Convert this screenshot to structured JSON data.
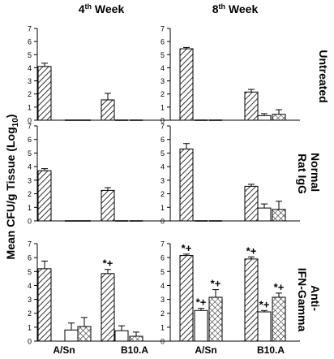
{
  "figure": {
    "ylabel": "Mean CFU/g Tissue (Log",
    "ylabel_sub": "10",
    "ylabel_end": ")",
    "columns": [
      {
        "main": "4",
        "sup": "th",
        "rest": " Week"
      },
      {
        "main": "8",
        "sup": "th",
        "rest": " Week"
      }
    ],
    "rows": [
      {
        "lines": [
          "Untreated"
        ]
      },
      {
        "lines": [
          "Normal",
          "Rat IgG"
        ]
      },
      {
        "lines": [
          "Anti-",
          "IFN-Gamma"
        ]
      }
    ],
    "x_groups": [
      "A/Sn",
      "B10.A"
    ]
  },
  "chart_data": [
    {
      "type": "bar",
      "week": "4th Week",
      "treatment": "Untreated",
      "categories": [
        "A/Sn",
        "B10.A"
      ],
      "ylim": [
        0,
        7
      ],
      "yticks": [
        "0",
        "1",
        "2",
        "3",
        "4",
        "5",
        "6",
        "7"
      ],
      "series": [
        {
          "values": [
            4.1,
            1.55
          ],
          "errors": [
            0.25,
            0.5
          ]
        },
        {
          "values": [
            0,
            0
          ],
          "errors": [
            0,
            0
          ]
        },
        {
          "values": [
            0,
            0
          ],
          "errors": [
            0,
            0
          ]
        }
      ],
      "annotations": [
        [
          [],
          [],
          []
        ],
        [
          [],
          [],
          []
        ]
      ]
    },
    {
      "type": "bar",
      "week": "8th Week",
      "treatment": "Untreated",
      "categories": [
        "A/Sn",
        "B10.A"
      ],
      "ylim": [
        0,
        7
      ],
      "yticks": [
        "0",
        "1",
        "2",
        "3",
        "4",
        "5",
        "6",
        "7"
      ],
      "series": [
        {
          "values": [
            5.45,
            2.15
          ],
          "errors": [
            0.1,
            0.2
          ]
        },
        {
          "values": [
            0,
            0.35
          ],
          "errors": [
            0,
            0.15
          ]
        },
        {
          "values": [
            0,
            0.45
          ],
          "errors": [
            0,
            0.35
          ]
        }
      ],
      "annotations": [
        [
          [],
          [],
          []
        ],
        [
          [],
          [],
          []
        ]
      ]
    },
    {
      "type": "bar",
      "week": "4th Week",
      "treatment": "Normal Rat IgG",
      "categories": [
        "A/Sn",
        "B10.A"
      ],
      "ylim": [
        0,
        7
      ],
      "yticks": [
        "0",
        "1",
        "2",
        "3",
        "4",
        "5",
        "6",
        "7"
      ],
      "series": [
        {
          "values": [
            3.7,
            2.25
          ],
          "errors": [
            0.15,
            0.2
          ]
        },
        {
          "values": [
            0,
            0
          ],
          "errors": [
            0,
            0
          ]
        },
        {
          "values": [
            0,
            0
          ],
          "errors": [
            0,
            0
          ]
        }
      ],
      "annotations": [
        [
          [],
          [],
          []
        ],
        [
          [],
          [],
          []
        ]
      ]
    },
    {
      "type": "bar",
      "week": "8th Week",
      "treatment": "Normal Rat IgG",
      "categories": [
        "A/Sn",
        "B10.A"
      ],
      "ylim": [
        0,
        7
      ],
      "yticks": [
        "0",
        "1",
        "2",
        "3",
        "4",
        "5",
        "6",
        "7"
      ],
      "series": [
        {
          "values": [
            5.3,
            2.55
          ],
          "errors": [
            0.4,
            0.15
          ]
        },
        {
          "values": [
            0,
            0.95
          ],
          "errors": [
            0,
            0.3
          ]
        },
        {
          "values": [
            0,
            0.85
          ],
          "errors": [
            0,
            0.6
          ]
        }
      ],
      "annotations": [
        [
          [],
          [],
          []
        ],
        [
          [],
          [],
          []
        ]
      ]
    },
    {
      "type": "bar",
      "week": "4th Week",
      "treatment": "Anti-IFN-Gamma",
      "categories": [
        "A/Sn",
        "B10.A"
      ],
      "ylim": [
        0,
        7
      ],
      "yticks": [
        "0",
        "1",
        "2",
        "3",
        "4",
        "5",
        "6",
        "7"
      ],
      "series": [
        {
          "values": [
            5.2,
            4.85
          ],
          "errors": [
            0.55,
            0.3
          ]
        },
        {
          "values": [
            0.8,
            0.75
          ],
          "errors": [
            0.5,
            0.35
          ]
        },
        {
          "values": [
            1.05,
            0.35
          ],
          "errors": [
            0.65,
            0.3
          ]
        }
      ],
      "annotations": [
        [
          [],
          [],
          []
        ],
        [
          [
            "*+"
          ],
          [],
          []
        ]
      ]
    },
    {
      "type": "bar",
      "week": "8th Week",
      "treatment": "Anti-IFN-Gamma",
      "categories": [
        "A/Sn",
        "B10.A"
      ],
      "ylim": [
        0,
        7
      ],
      "yticks": [
        "0",
        "1",
        "2",
        "3",
        "4",
        "5",
        "6",
        "7"
      ],
      "series": [
        {
          "values": [
            6.15,
            5.9
          ],
          "errors": [
            0.1,
            0.15
          ]
        },
        {
          "values": [
            2.2,
            2.1
          ],
          "errors": [
            0.15,
            0.1
          ]
        },
        {
          "values": [
            3.15,
            3.15
          ],
          "errors": [
            0.55,
            0.3
          ]
        }
      ],
      "annotations": [
        [
          [
            "*+"
          ],
          [
            "*+"
          ],
          [
            "*+"
          ]
        ],
        [
          [
            "*+"
          ],
          [
            "*+"
          ],
          [
            "*+"
          ]
        ]
      ]
    }
  ]
}
